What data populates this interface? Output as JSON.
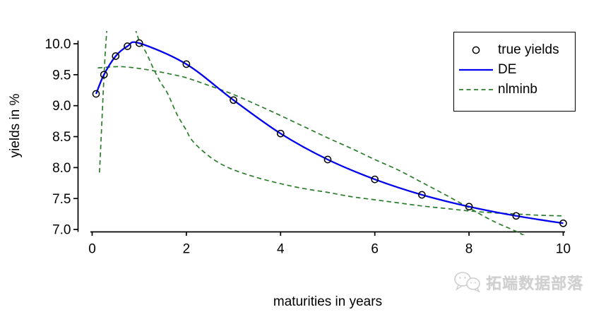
{
  "chart_data": {
    "type": "line",
    "title": "",
    "xlabel": "maturities in years",
    "ylabel": "yields in %",
    "xlim": [
      0,
      10
    ],
    "ylim": [
      7.0,
      10.0
    ],
    "x_ticks": [
      "0",
      "2",
      "4",
      "6",
      "8",
      "10"
    ],
    "y_ticks": [
      "7.0",
      "7.5",
      "8.0",
      "8.5",
      "9.0",
      "9.5",
      "10.0"
    ],
    "grid": "off",
    "legend": {
      "position": "top-right",
      "entries": [
        {
          "label": "true yields",
          "marker": "open-circle"
        },
        {
          "label": "DE",
          "marker": "solid-line"
        },
        {
          "label": "nlminb",
          "marker": "dashed-line"
        }
      ]
    },
    "series": [
      {
        "name": "true yields",
        "legend": "true yields",
        "style": "points",
        "marker": "open-circle",
        "color": "#000000",
        "x": [
          0.083,
          0.25,
          0.5,
          0.75,
          1,
          2,
          3,
          4,
          5,
          6,
          7,
          8,
          9,
          10
        ],
        "y": [
          9.19,
          9.5,
          9.8,
          9.96,
          10.01,
          9.67,
          9.09,
          8.55,
          8.13,
          7.81,
          7.56,
          7.37,
          7.22,
          7.1
        ]
      },
      {
        "name": "DE",
        "legend": "DE",
        "style": "solid",
        "color": "#0000ee",
        "x": [
          0.083,
          0.25,
          0.5,
          0.75,
          1,
          2,
          3,
          4,
          5,
          6,
          7,
          8,
          9,
          10
        ],
        "y": [
          9.19,
          9.5,
          9.8,
          9.96,
          10.01,
          9.67,
          9.09,
          8.55,
          8.13,
          7.81,
          7.56,
          7.37,
          7.22,
          7.1
        ]
      },
      {
        "name": "nlminb-1",
        "legend": "nlminb",
        "style": "dashed",
        "color": "#2b7d2b",
        "x": [
          0.155,
          0.18,
          0.21,
          0.24,
          0.27,
          0.3,
          0.34,
          0.45,
          0.6,
          0.75,
          0.85,
          0.94,
          1.0,
          1.15,
          1.3,
          1.45,
          1.6,
          1.8,
          2.0,
          2.1,
          2.3,
          2.6,
          2.95,
          3.45,
          4.0,
          4.5,
          5.0,
          5.5,
          6.0,
          6.5,
          7.0,
          7.5,
          8.0,
          8.5,
          9.0,
          9.5,
          10.0
        ],
        "y": [
          7.92,
          8.3,
          8.8,
          9.3,
          9.75,
          10.1,
          10.4,
          10.62,
          10.7,
          10.55,
          10.36,
          10.18,
          10.05,
          9.85,
          9.6,
          9.38,
          9.2,
          8.86,
          8.6,
          8.46,
          8.3,
          8.12,
          7.98,
          7.85,
          7.74,
          7.66,
          7.6,
          7.53,
          7.48,
          7.43,
          7.38,
          7.34,
          7.3,
          7.27,
          7.25,
          7.23,
          7.22
        ]
      },
      {
        "name": "nlminb-2",
        "legend": "nlminb",
        "style": "dashed",
        "color": "#2b7d2b",
        "x": [
          0.12,
          0.6,
          1.1,
          1.6,
          2.0,
          2.5,
          3.0,
          3.6,
          4.0,
          4.5,
          5.0,
          5.5,
          6.0,
          6.5,
          7.0,
          7.5,
          8.0,
          8.5,
          9.0,
          9.3
        ],
        "y": [
          9.61,
          9.63,
          9.59,
          9.52,
          9.45,
          9.32,
          9.18,
          8.98,
          8.84,
          8.66,
          8.48,
          8.31,
          8.13,
          7.96,
          7.76,
          7.56,
          7.35,
          7.14,
          6.97,
          6.85
        ]
      }
    ]
  },
  "watermark": {
    "text": "拓端数据部落"
  }
}
